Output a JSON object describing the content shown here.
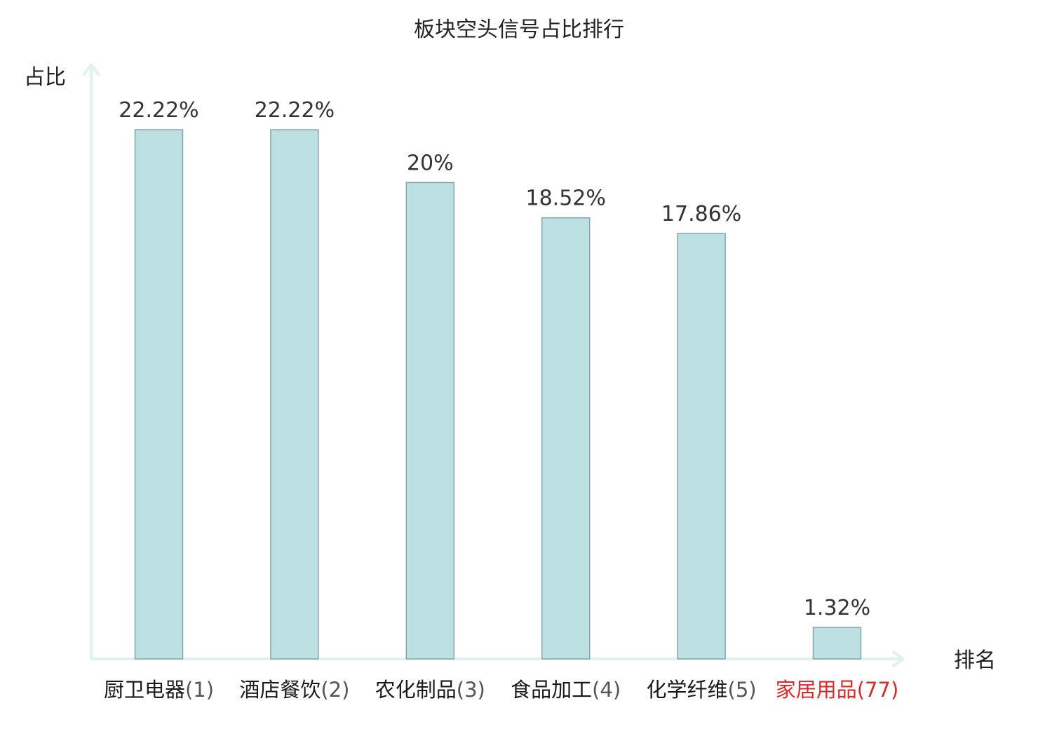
{
  "chart_data": {
    "type": "bar",
    "title": "板块空头信号占比排行",
    "ylabel": "占比",
    "xlabel": "排名",
    "categories": [
      "厨卫电器",
      "酒店餐饮",
      "农化制品",
      "食品加工",
      "化学纤维",
      "家居用品"
    ],
    "ranks": [
      "(1)",
      "(2)",
      "(3)",
      "(4)",
      "(5)",
      "(77)"
    ],
    "values": [
      22.22,
      22.22,
      20,
      18.52,
      17.86,
      1.32
    ],
    "value_labels": [
      "22.22%",
      "22.22%",
      "20%",
      "18.52%",
      "17.86%",
      "1.32%"
    ],
    "highlight_index": 5,
    "ylim": [
      0,
      22.22
    ],
    "grid": false,
    "colors": {
      "bar_fill": "#bde0e3",
      "bar_stroke": "#86a5a8",
      "axis": "#dff2ef",
      "highlight_text": "#d42a2a"
    }
  }
}
